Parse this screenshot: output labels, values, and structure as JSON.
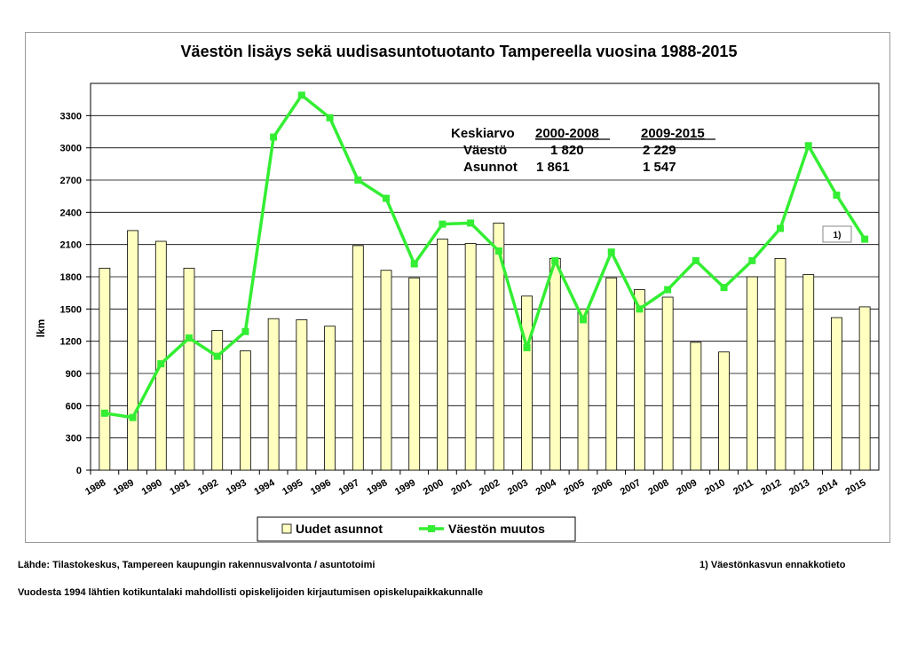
{
  "chart_data": {
    "type": "bar+line",
    "title": "Väestön lisäys sekä uudisasuntotuotanto Tampereella vuosina 1988-2015",
    "ylabel": "lkm",
    "ylim": [
      0,
      3600
    ],
    "yticks": [
      0,
      300,
      600,
      900,
      1200,
      1500,
      1800,
      2100,
      2400,
      2700,
      3000,
      3300
    ],
    "grid": true,
    "legend_position": "bottom",
    "categories": [
      "1988",
      "1989",
      "1990",
      "1991",
      "1992",
      "1993",
      "1994",
      "1995",
      "1996",
      "1997",
      "1998",
      "1999",
      "2000",
      "2001",
      "2002",
      "2003",
      "2004",
      "2005",
      "2006",
      "2007",
      "2008",
      "2009",
      "2010",
      "2011",
      "2012",
      "2013",
      "2014",
      "2015"
    ],
    "series": [
      {
        "name": "Uudet asunnot",
        "type": "bar",
        "color": "#ffffc0",
        "values": [
          1880,
          2230,
          2130,
          1880,
          1300,
          1110,
          1410,
          1400,
          1340,
          2090,
          1860,
          1790,
          2150,
          2110,
          2300,
          1620,
          1970,
          1500,
          1790,
          1680,
          1610,
          1190,
          1100,
          1800,
          1970,
          1820,
          1420,
          1520
        ]
      },
      {
        "name": "Väestön muutos",
        "type": "line",
        "color": "#33ee33",
        "values": [
          530,
          490,
          990,
          1230,
          1060,
          1290,
          3100,
          3490,
          3280,
          2700,
          2530,
          1920,
          2290,
          2300,
          2040,
          1140,
          1950,
          1400,
          2030,
          1500,
          1680,
          1950,
          1700,
          1950,
          2250,
          3020,
          2560,
          2150
        ]
      }
    ],
    "annotation": {
      "label": "1)",
      "category": "2015"
    },
    "summary_table": {
      "heading": "Keskiarvo",
      "period1": "2000-2008",
      "period2": "2009-2015",
      "rows": [
        {
          "label": "Väestö",
          "v1": "1 820",
          "v2": "2 229"
        },
        {
          "label": "Asunnot",
          "v1": "1 861",
          "v2": "1 547"
        }
      ]
    }
  },
  "footer": {
    "source": "Lähde: Tilastokeskus, Tampereen kaupungin rakennusvalvonta / asuntotoimi",
    "footnote": "1) Väestönkasvun ennakkotieto",
    "note": "Vuodesta 1994 lähtien kotikuntalaki mahdollisti opiskelijoiden kirjautumisen opiskelupaikkakunnalle"
  }
}
